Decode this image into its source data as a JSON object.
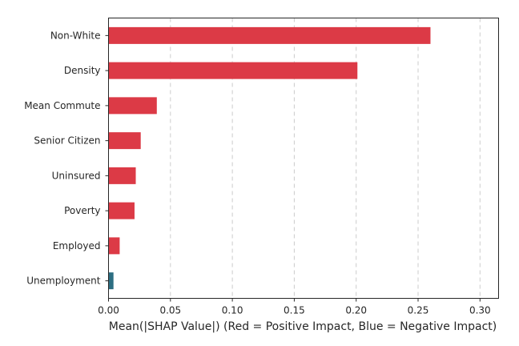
{
  "chart_data": {
    "type": "bar",
    "orientation": "horizontal",
    "title": "",
    "xlabel": "Mean(|SHAP Value|) (Red = Positive Impact, Blue = Negative Impact)",
    "ylabel": "",
    "categories": [
      "Non-White",
      "Density",
      "Mean Commute",
      "Senior Citizen",
      "Uninsured",
      "Poverty",
      "Employed",
      "Unemployment"
    ],
    "values": [
      0.26,
      0.201,
      0.039,
      0.026,
      0.022,
      0.021,
      0.009,
      0.004
    ],
    "impact": [
      "positive",
      "positive",
      "positive",
      "positive",
      "positive",
      "positive",
      "positive",
      "negative"
    ],
    "xlim": [
      0,
      0.315
    ],
    "xticks": [
      "0.00",
      "0.05",
      "0.10",
      "0.15",
      "0.20",
      "0.25",
      "0.30"
    ],
    "xtick_values": [
      0,
      0.05,
      0.1,
      0.15,
      0.2,
      0.25,
      0.3
    ],
    "grid": "x-dashed",
    "legend": "none",
    "colors": {
      "positive": "#dc3a46",
      "negative": "#2d6e82",
      "grid": "#cccccc",
      "axis": "#262626"
    }
  }
}
